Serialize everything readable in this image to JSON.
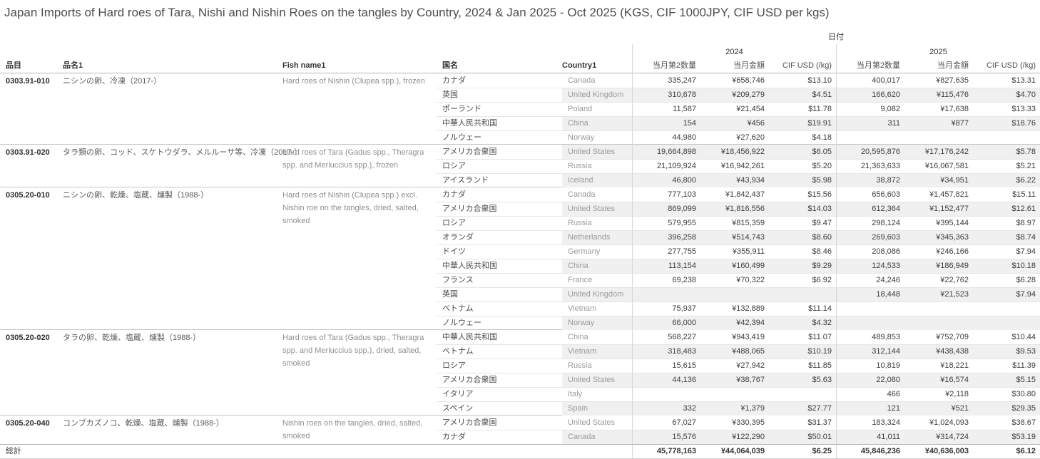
{
  "title": "Japan Imports of Hard roes of Tara, Nishi and Nishin Roes on the tangles by Country, 2024 & Jan 2025 - Oct 2025 (KGS, CIF 1000JPY, CIF USD per kgs)",
  "columns": {
    "item": "品目",
    "item_name": "品名1",
    "fish_name": "Fish name1",
    "country_jp": "国名",
    "country_en": "Country1",
    "date_label": "日付",
    "years": [
      "2024",
      "2025"
    ],
    "measures": [
      "当月第2数量",
      "当月金額",
      "CIF USD (/kg)"
    ]
  },
  "groups": [
    {
      "code": "0303.91-010",
      "name_jp": "ニシンの卵、冷凍（2017-）",
      "fish_name": "Hard roes of Nishin (Clupea spp.), frozen",
      "rows": [
        {
          "country_jp": "カナダ",
          "country_en": "Canada",
          "y2024": [
            "335,247",
            "¥658,746",
            "$13.10"
          ],
          "y2025": [
            "400,017",
            "¥827,635",
            "$13.31"
          ]
        },
        {
          "country_jp": "英国",
          "country_en": "United Kingdom",
          "y2024": [
            "310,678",
            "¥209,279",
            "$4.51"
          ],
          "y2025": [
            "166,620",
            "¥115,476",
            "$4.70"
          ]
        },
        {
          "country_jp": "ポーランド",
          "country_en": "Poland",
          "y2024": [
            "11,587",
            "¥21,454",
            "$11.78"
          ],
          "y2025": [
            "9,082",
            "¥17,638",
            "$13.33"
          ]
        },
        {
          "country_jp": "中華人民共和国",
          "country_en": "China",
          "y2024": [
            "154",
            "¥456",
            "$19.91"
          ],
          "y2025": [
            "311",
            "¥877",
            "$18.76"
          ]
        },
        {
          "country_jp": "ノルウェー",
          "country_en": "Norway",
          "y2024": [
            "44,980",
            "¥27,620",
            "$4.18"
          ],
          "y2025": [
            "",
            "",
            ""
          ]
        }
      ]
    },
    {
      "code": "0303.91-020",
      "name_jp": "タラ類の卵、コッド、スケトウダラ、メルルーサ等、冷凍（2017-）",
      "fish_name": "Hard roes of Tara (Gadus spp., Theragra spp. and Merluccius spp.), frozen",
      "rows": [
        {
          "country_jp": "アメリカ合衆国",
          "country_en": "United States",
          "y2024": [
            "19,664,898",
            "¥18,456,922",
            "$6.05"
          ],
          "y2025": [
            "20,595,876",
            "¥17,176,242",
            "$5.78"
          ]
        },
        {
          "country_jp": "ロシア",
          "country_en": "Russia",
          "y2024": [
            "21,109,924",
            "¥16,942,261",
            "$5.20"
          ],
          "y2025": [
            "21,363,633",
            "¥16,067,581",
            "$5.21"
          ]
        },
        {
          "country_jp": "アイスランド",
          "country_en": "Iceland",
          "y2024": [
            "46,800",
            "¥43,934",
            "$5.98"
          ],
          "y2025": [
            "38,872",
            "¥34,951",
            "$6.22"
          ]
        }
      ]
    },
    {
      "code": "0305.20-010",
      "name_jp": "ニシンの卵、乾燥、塩蔵、燻製（1988-）",
      "fish_name": "Hard roes of Nishin (Clupea spp.) excl. Nishin roe on the tangles, dried, salted, smoked",
      "rows": [
        {
          "country_jp": "カナダ",
          "country_en": "Canada",
          "y2024": [
            "777,103",
            "¥1,842,437",
            "$15.56"
          ],
          "y2025": [
            "656,603",
            "¥1,457,821",
            "$15.11"
          ]
        },
        {
          "country_jp": "アメリカ合衆国",
          "country_en": "United States",
          "y2024": [
            "869,099",
            "¥1,816,556",
            "$14.03"
          ],
          "y2025": [
            "612,364",
            "¥1,152,477",
            "$12.61"
          ]
        },
        {
          "country_jp": "ロシア",
          "country_en": "Russia",
          "y2024": [
            "579,955",
            "¥815,359",
            "$9.47"
          ],
          "y2025": [
            "298,124",
            "¥395,144",
            "$8.97"
          ]
        },
        {
          "country_jp": "オランダ",
          "country_en": "Netherlands",
          "y2024": [
            "396,258",
            "¥514,743",
            "$8.60"
          ],
          "y2025": [
            "269,603",
            "¥345,363",
            "$8.74"
          ]
        },
        {
          "country_jp": "ドイツ",
          "country_en": "Germany",
          "y2024": [
            "277,755",
            "¥355,911",
            "$8.46"
          ],
          "y2025": [
            "208,086",
            "¥246,166",
            "$7.94"
          ]
        },
        {
          "country_jp": "中華人民共和国",
          "country_en": "China",
          "y2024": [
            "113,154",
            "¥160,499",
            "$9.29"
          ],
          "y2025": [
            "124,533",
            "¥186,949",
            "$10.18"
          ]
        },
        {
          "country_jp": "フランス",
          "country_en": "France",
          "y2024": [
            "69,238",
            "¥70,322",
            "$6.92"
          ],
          "y2025": [
            "24,246",
            "¥22,762",
            "$6.28"
          ]
        },
        {
          "country_jp": "英国",
          "country_en": "United Kingdom",
          "y2024": [
            "",
            "",
            ""
          ],
          "y2025": [
            "18,448",
            "¥21,523",
            "$7.94"
          ]
        },
        {
          "country_jp": "ベトナム",
          "country_en": "Vietnam",
          "y2024": [
            "75,937",
            "¥132,889",
            "$11.14"
          ],
          "y2025": [
            "",
            "",
            ""
          ]
        },
        {
          "country_jp": "ノルウェー",
          "country_en": "Norway",
          "y2024": [
            "66,000",
            "¥42,394",
            "$4.32"
          ],
          "y2025": [
            "",
            "",
            ""
          ]
        }
      ]
    },
    {
      "code": "0305.20-020",
      "name_jp": "タラの卵、乾燥、塩蔵、燻製（1988-）",
      "fish_name": "Hard roes of Tara (Gadus spp., Theragra spp. and Merluccius spp.), dried, salted, smoked",
      "rows": [
        {
          "country_jp": "中華人民共和国",
          "country_en": "China",
          "y2024": [
            "568,227",
            "¥943,419",
            "$11.07"
          ],
          "y2025": [
            "489,853",
            "¥752,709",
            "$10.44"
          ]
        },
        {
          "country_jp": "ベトナム",
          "country_en": "Vietnam",
          "y2024": [
            "318,483",
            "¥488,065",
            "$10.19"
          ],
          "y2025": [
            "312,144",
            "¥438,438",
            "$9.53"
          ]
        },
        {
          "country_jp": "ロシア",
          "country_en": "Russia",
          "y2024": [
            "15,615",
            "¥27,942",
            "$11.85"
          ],
          "y2025": [
            "10,819",
            "¥18,221",
            "$11.39"
          ]
        },
        {
          "country_jp": "アメリカ合衆国",
          "country_en": "United States",
          "y2024": [
            "44,136",
            "¥38,767",
            "$5.63"
          ],
          "y2025": [
            "22,080",
            "¥16,574",
            "$5.15"
          ]
        },
        {
          "country_jp": "イタリア",
          "country_en": "Italy",
          "y2024": [
            "",
            "",
            ""
          ],
          "y2025": [
            "466",
            "¥2,118",
            "$30.80"
          ]
        },
        {
          "country_jp": "スペイン",
          "country_en": "Spain",
          "y2024": [
            "332",
            "¥1,379",
            "$27.77"
          ],
          "y2025": [
            "121",
            "¥521",
            "$29.35"
          ]
        }
      ]
    },
    {
      "code": "0305.20-040",
      "name_jp": "コンブカズノコ、乾燥、塩蔵、燻製（1988-）",
      "fish_name": "Nishin roes on the tangles, dried, salted, smoked",
      "rows": [
        {
          "country_jp": "アメリカ合衆国",
          "country_en": "United States",
          "y2024": [
            "67,027",
            "¥330,395",
            "$31.37"
          ],
          "y2025": [
            "183,324",
            "¥1,024,093",
            "$38.67"
          ]
        },
        {
          "country_jp": "カナダ",
          "country_en": "Canada",
          "y2024": [
            "15,576",
            "¥122,290",
            "$50.01"
          ],
          "y2025": [
            "41,011",
            "¥314,724",
            "$53.19"
          ]
        }
      ]
    }
  ],
  "total": {
    "label": "総計",
    "y2024": [
      "45,778,163",
      "¥44,064,039",
      "$6.25"
    ],
    "y2025": [
      "45,846,236",
      "¥40,636,003",
      "$6.12"
    ]
  }
}
